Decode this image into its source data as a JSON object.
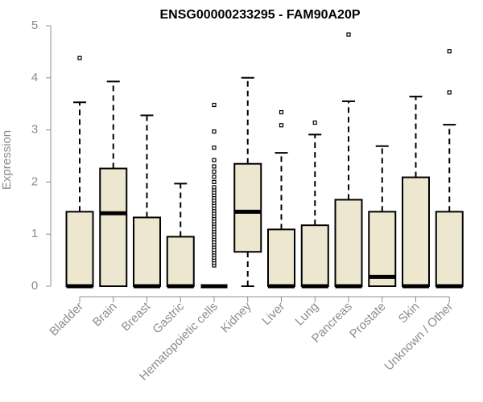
{
  "chart_data": {
    "type": "boxplot",
    "title": "ENSG00000233295 - FAM90A20P",
    "xlabel": "",
    "ylabel": "Expression",
    "ylim": [
      0,
      5
    ],
    "yticks": [
      0,
      1,
      2,
      3,
      4,
      5
    ],
    "grid": false,
    "colors": {
      "box_fill": "#ede7cf",
      "stroke": "#000000",
      "axis_text": "#8c8c8c"
    },
    "groups": [
      {
        "name": "Bladder",
        "q1": 0,
        "median": 0,
        "q3": 1.43,
        "whisker_low": 0,
        "whisker_high": 3.53,
        "outliers": [
          4.38
        ]
      },
      {
        "name": "Brain",
        "q1": 0,
        "median": 1.4,
        "q3": 2.26,
        "whisker_low": 0,
        "whisker_high": 3.93,
        "outliers": []
      },
      {
        "name": "Breast",
        "q1": 0,
        "median": 0,
        "q3": 1.32,
        "whisker_low": 0,
        "whisker_high": 3.28,
        "outliers": []
      },
      {
        "name": "Gastric",
        "q1": 0,
        "median": 0,
        "q3": 0.95,
        "whisker_low": 0,
        "whisker_high": 1.97,
        "outliers": []
      },
      {
        "name": "Hematopoietic cells",
        "q1": 0,
        "median": 0,
        "q3": 0,
        "whisker_low": 0,
        "whisker_high": 0,
        "outliers": [
          0.4,
          0.45,
          0.5,
          0.55,
          0.6,
          0.65,
          0.7,
          0.75,
          0.8,
          0.85,
          0.9,
          0.95,
          1.0,
          1.05,
          1.1,
          1.15,
          1.2,
          1.25,
          1.3,
          1.35,
          1.4,
          1.45,
          1.5,
          1.55,
          1.6,
          1.65,
          1.7,
          1.75,
          1.8,
          1.85,
          1.9,
          2.0,
          2.1,
          2.2,
          2.3,
          2.42,
          2.66,
          2.97,
          3.48
        ]
      },
      {
        "name": "Kidney",
        "q1": 0.66,
        "median": 1.43,
        "q3": 2.35,
        "whisker_low": 0,
        "whisker_high": 4.0,
        "outliers": []
      },
      {
        "name": "Liver",
        "q1": 0,
        "median": 0,
        "q3": 1.09,
        "whisker_low": 0,
        "whisker_high": 2.56,
        "outliers": [
          3.09,
          3.34
        ]
      },
      {
        "name": "Lung",
        "q1": 0,
        "median": 0,
        "q3": 1.17,
        "whisker_low": 0,
        "whisker_high": 2.91,
        "outliers": [
          3.14
        ]
      },
      {
        "name": "Pancreas",
        "q1": 0,
        "median": 0,
        "q3": 1.66,
        "whisker_low": 0,
        "whisker_high": 3.55,
        "outliers": [
          4.83
        ]
      },
      {
        "name": "Prostate",
        "q1": 0,
        "median": 0.18,
        "q3": 1.43,
        "whisker_low": 0,
        "whisker_high": 2.69,
        "outliers": []
      },
      {
        "name": "Skin",
        "q1": 0,
        "median": 0,
        "q3": 2.09,
        "whisker_low": 0,
        "whisker_high": 3.64,
        "outliers": []
      },
      {
        "name": "Unknown / Other",
        "q1": 0,
        "median": 0,
        "q3": 1.43,
        "whisker_low": 0,
        "whisker_high": 3.1,
        "outliers": [
          3.72,
          4.51
        ]
      }
    ]
  }
}
